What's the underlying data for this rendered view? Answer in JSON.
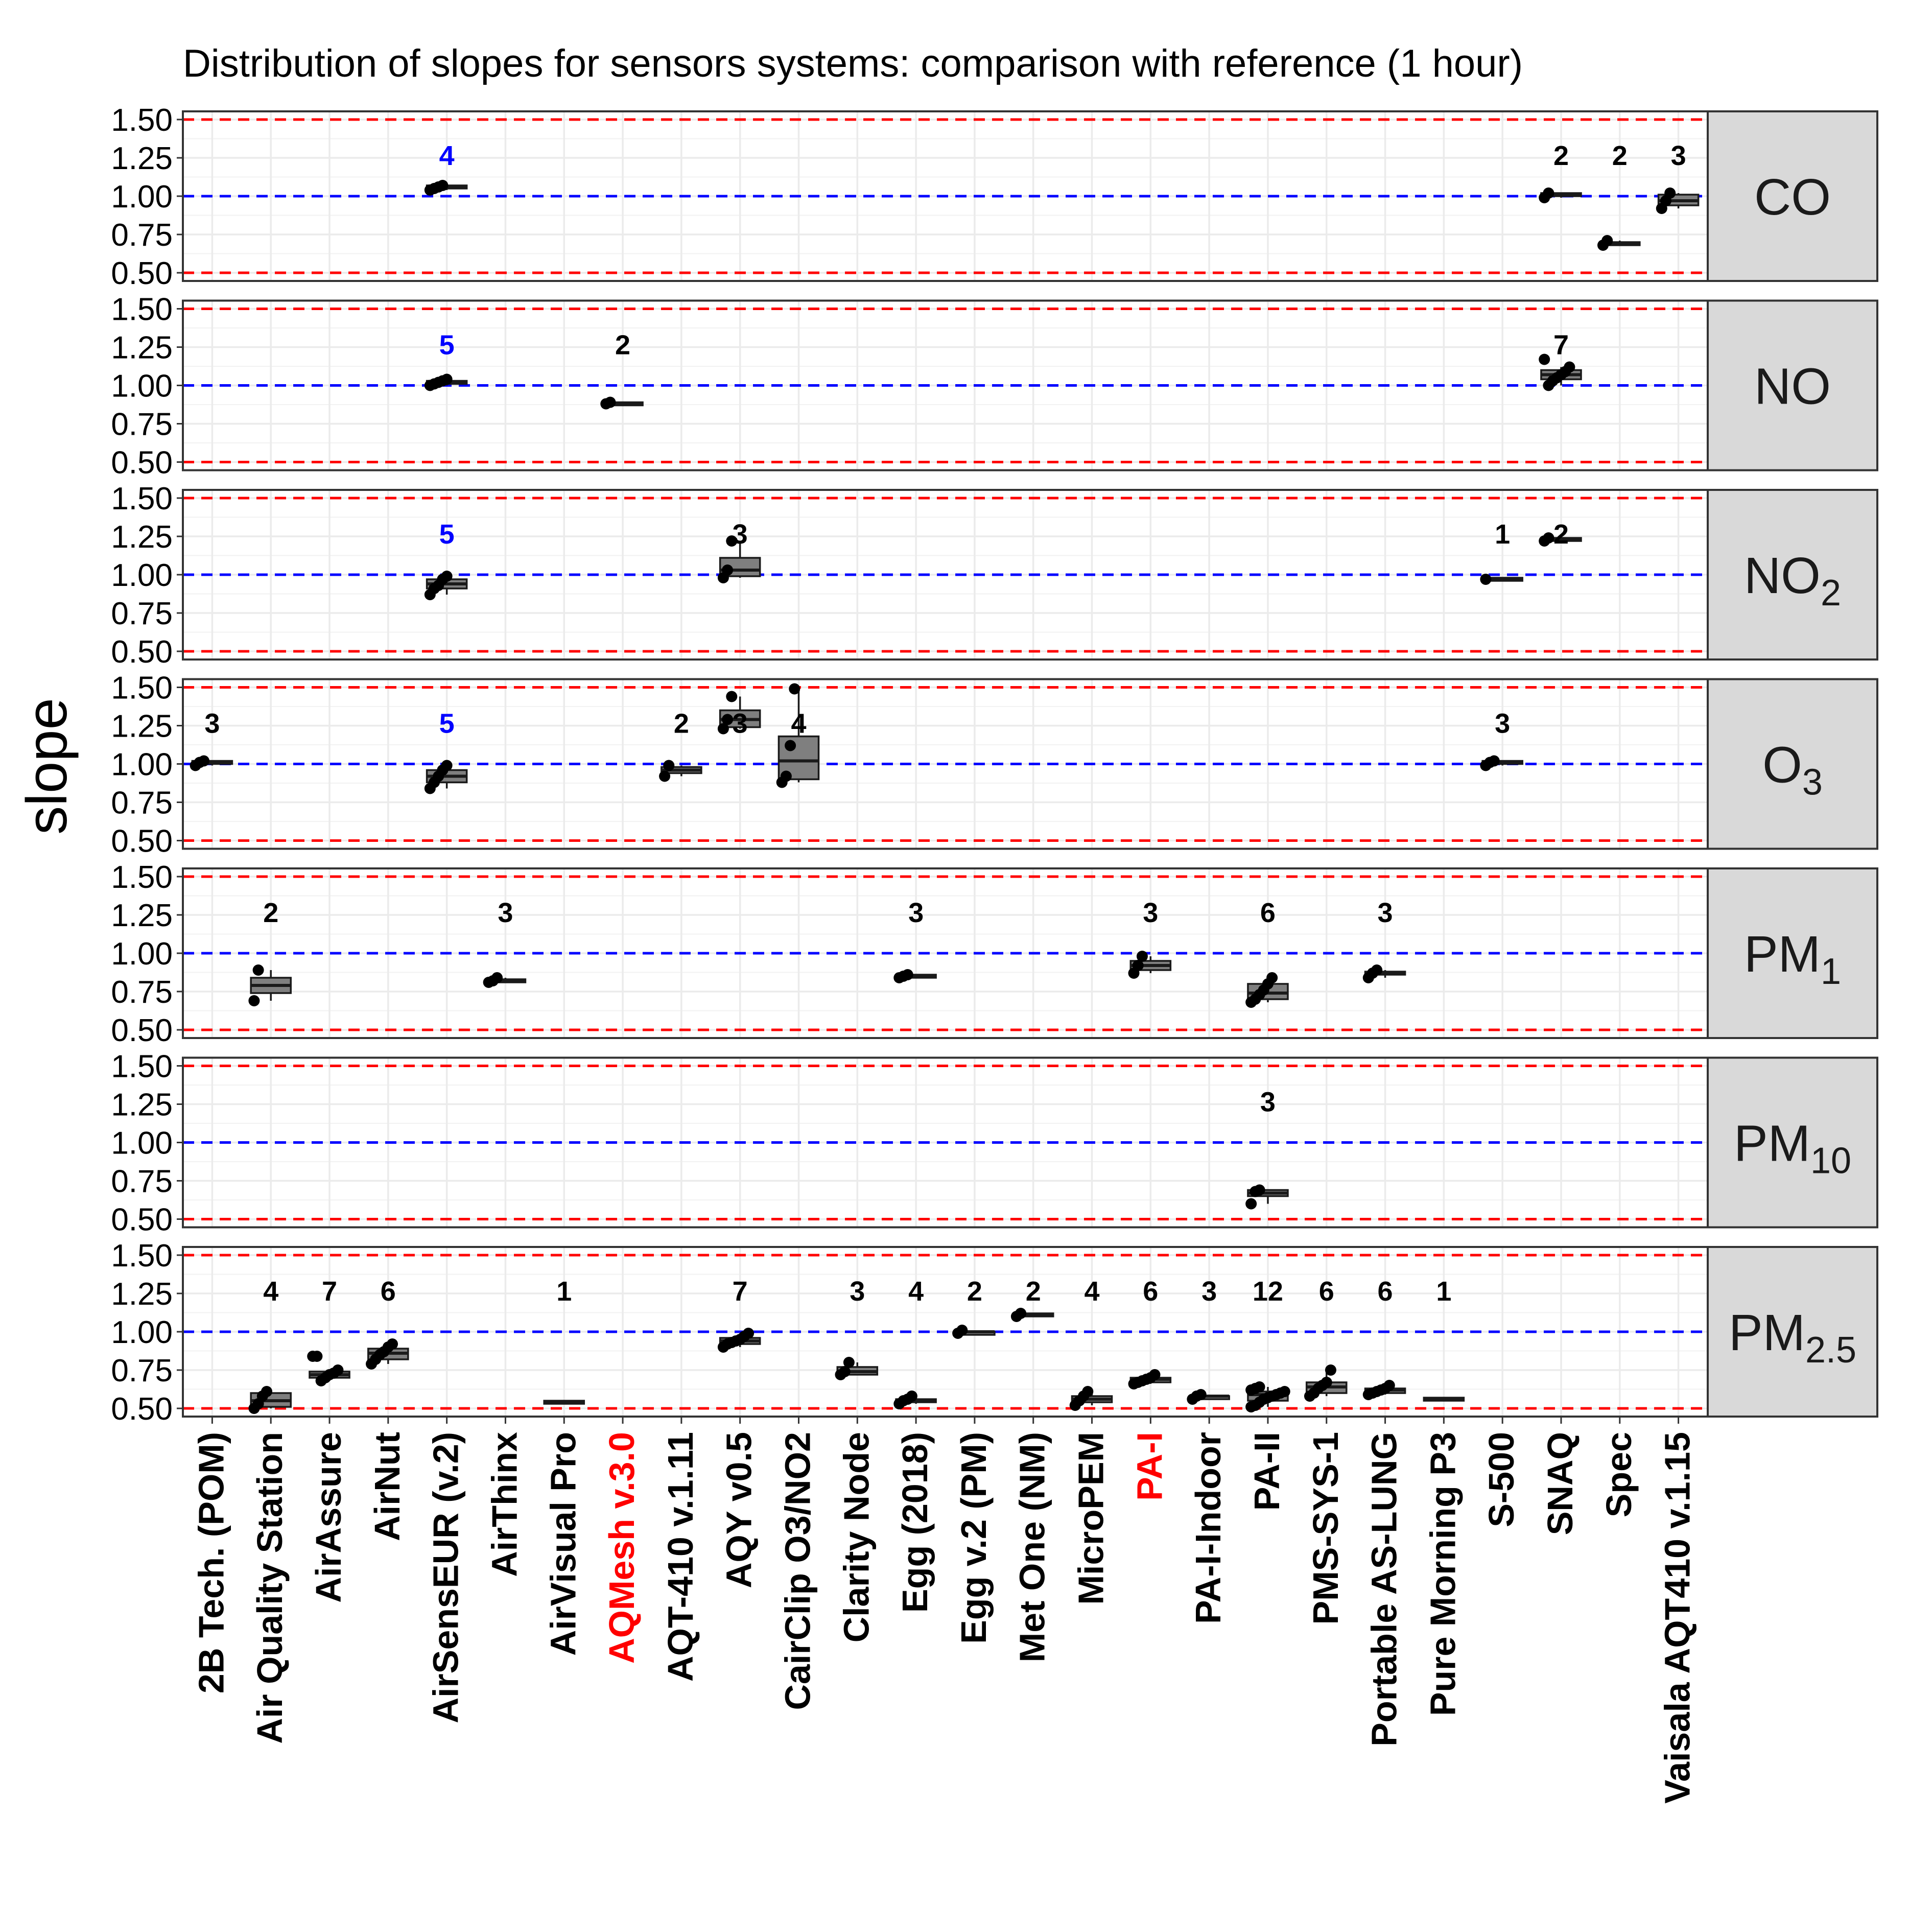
{
  "chart_data": {
    "type": "box",
    "title": "Distribution of slopes for sensors systems: comparison with reference (1 hour)",
    "ylabel": "slope",
    "ylim": [
      0.5,
      1.5
    ],
    "yticks": [
      0.5,
      0.75,
      1.0,
      1.25,
      1.5
    ],
    "ytick_labels": [
      "0.50",
      "0.75",
      "1.00",
      "1.25",
      "1.50"
    ],
    "reference_lines": [
      {
        "value": 1.0,
        "color": "#0000ff",
        "style": "dashed"
      },
      {
        "value": 0.5,
        "color": "#ff0000",
        "style": "dashed"
      },
      {
        "value": 1.5,
        "color": "#ff0000",
        "style": "dashed"
      }
    ],
    "colors": {
      "box_fill": "#7f7f7f",
      "point": "#000000",
      "count_default": "#000000",
      "count_highlight": "#0000ff",
      "label_highlight": "#ff0000",
      "strip_bg": "#d9d9d9",
      "grid": "#ebebeb"
    },
    "categories": [
      {
        "label": "2B Tech. (POM)",
        "highlight": false
      },
      {
        "label": "Air Quality Station",
        "highlight": false
      },
      {
        "label": "AirAssure",
        "highlight": false
      },
      {
        "label": "AirNut",
        "highlight": false
      },
      {
        "label": "AirSensEUR (v.2)",
        "highlight": false
      },
      {
        "label": "AirThinx",
        "highlight": false
      },
      {
        "label": "AirVisual Pro",
        "highlight": false
      },
      {
        "label": "AQMesh v.3.0",
        "highlight": true
      },
      {
        "label": "AQT-410 v.1.11",
        "highlight": false
      },
      {
        "label": "AQY v0.5",
        "highlight": false
      },
      {
        "label": "CairClip O3/NO2",
        "highlight": false
      },
      {
        "label": "Clarity Node",
        "highlight": false
      },
      {
        "label": "Egg (2018)",
        "highlight": false
      },
      {
        "label": "Egg v.2 (PM)",
        "highlight": false
      },
      {
        "label": "Met One (NM)",
        "highlight": false
      },
      {
        "label": "MicroPEM",
        "highlight": false
      },
      {
        "label": "PA-I",
        "highlight": true
      },
      {
        "label": "PA-I-Indoor",
        "highlight": false
      },
      {
        "label": "PA-II",
        "highlight": false
      },
      {
        "label": "PMS-SYS-1",
        "highlight": false
      },
      {
        "label": "Portable AS-LUNG",
        "highlight": false
      },
      {
        "label": "Pure Morning P3",
        "highlight": false
      },
      {
        "label": "S-500",
        "highlight": false
      },
      {
        "label": "SNAQ",
        "highlight": false
      },
      {
        "label": "Spec",
        "highlight": false
      },
      {
        "label": "Vaisala AQT410 v.1.15",
        "highlight": false
      }
    ],
    "panels": [
      {
        "name": "CO",
        "strip": {
          "base": "CO",
          "sub": ""
        },
        "boxes": [
          {
            "cat": 4,
            "n": "4",
            "blue": true,
            "q1": 1.05,
            "med": 1.06,
            "q3": 1.07,
            "wlo": 1.04,
            "whi": 1.07,
            "points": [
              1.04,
              1.05,
              1.06,
              1.07
            ]
          },
          {
            "cat": 23,
            "n": "2",
            "blue": false,
            "q1": 1.0,
            "med": 1.01,
            "q3": 1.02,
            "wlo": 0.99,
            "whi": 1.02,
            "points": [
              0.99,
              1.02
            ]
          },
          {
            "cat": 24,
            "n": "2",
            "blue": false,
            "q1": 0.69,
            "med": 0.69,
            "q3": 0.7,
            "wlo": 0.68,
            "whi": 0.71,
            "points": [
              0.68,
              0.71
            ]
          },
          {
            "cat": 25,
            "n": "3",
            "blue": false,
            "q1": 0.94,
            "med": 0.97,
            "q3": 1.01,
            "wlo": 0.92,
            "whi": 1.02,
            "points": [
              0.92,
              0.97,
              1.02
            ]
          }
        ]
      },
      {
        "name": "NO",
        "strip": {
          "base": "NO",
          "sub": ""
        },
        "boxes": [
          {
            "cat": 4,
            "n": "5",
            "blue": true,
            "q1": 1.01,
            "med": 1.02,
            "q3": 1.03,
            "wlo": 1.0,
            "whi": 1.04,
            "points": [
              1.0,
              1.01,
              1.02,
              1.03,
              1.04
            ]
          },
          {
            "cat": 7,
            "n": "2",
            "blue": false,
            "q1": 0.88,
            "med": 0.88,
            "q3": 0.89,
            "wlo": 0.88,
            "whi": 0.89,
            "points": [
              0.88,
              0.89
            ]
          },
          {
            "cat": 23,
            "n": "7",
            "blue": false,
            "q1": 1.04,
            "med": 1.07,
            "q3": 1.1,
            "wlo": 1.0,
            "whi": 1.12,
            "points": [
              1.17,
              1.0,
              1.03,
              1.05,
              1.07,
              1.09,
              1.12
            ]
          }
        ]
      },
      {
        "name": "NO2",
        "strip": {
          "base": "NO",
          "sub": "2"
        },
        "boxes": [
          {
            "cat": 4,
            "n": "5",
            "blue": true,
            "q1": 0.91,
            "med": 0.94,
            "q3": 0.97,
            "wlo": 0.87,
            "whi": 0.99,
            "points": [
              0.87,
              0.91,
              0.93,
              0.97,
              0.99
            ]
          },
          {
            "cat": 9,
            "n": "3",
            "blue": false,
            "q1": 0.99,
            "med": 1.03,
            "q3": 1.11,
            "wlo": 0.98,
            "whi": 1.22,
            "points": [
              0.98,
              1.03,
              1.22
            ]
          },
          {
            "cat": 22,
            "n": "1",
            "blue": false,
            "q1": 0.97,
            "med": 0.97,
            "q3": 0.98,
            "wlo": 0.97,
            "whi": 0.98,
            "points": [
              0.97
            ]
          },
          {
            "cat": 23,
            "n": "2",
            "blue": false,
            "q1": 1.22,
            "med": 1.23,
            "q3": 1.24,
            "wlo": 1.22,
            "whi": 1.24,
            "points": [
              1.22,
              1.24
            ]
          }
        ]
      },
      {
        "name": "O3",
        "strip": {
          "base": "O",
          "sub": "3"
        },
        "boxes": [
          {
            "cat": 0,
            "n": "3",
            "blue": false,
            "q1": 1.0,
            "med": 1.01,
            "q3": 1.02,
            "wlo": 0.99,
            "whi": 1.02,
            "points": [
              0.99,
              1.01,
              1.02
            ]
          },
          {
            "cat": 4,
            "n": "5",
            "blue": true,
            "q1": 0.88,
            "med": 0.92,
            "q3": 0.96,
            "wlo": 0.84,
            "whi": 0.99,
            "points": [
              0.84,
              0.88,
              0.92,
              0.96,
              0.99
            ]
          },
          {
            "cat": 8,
            "n": "2",
            "blue": false,
            "q1": 0.94,
            "med": 0.96,
            "q3": 0.98,
            "wlo": 0.92,
            "whi": 0.99,
            "points": [
              0.92,
              0.99
            ]
          },
          {
            "cat": 9,
            "n": "3",
            "blue": false,
            "q1": 1.24,
            "med": 1.29,
            "q3": 1.35,
            "wlo": 1.23,
            "whi": 1.44,
            "points": [
              1.23,
              1.29,
              1.44
            ]
          },
          {
            "cat": 10,
            "n": "4",
            "blue": false,
            "q1": 0.9,
            "med": 1.02,
            "q3": 1.18,
            "wlo": 0.88,
            "whi": 1.49,
            "points": [
              0.88,
              0.92,
              1.12,
              1.49
            ]
          },
          {
            "cat": 22,
            "n": "3",
            "blue": false,
            "q1": 1.0,
            "med": 1.01,
            "q3": 1.02,
            "wlo": 0.99,
            "whi": 1.02,
            "points": [
              0.99,
              1.01,
              1.02
            ]
          }
        ]
      },
      {
        "name": "PM1",
        "strip": {
          "base": "PM",
          "sub": "1"
        },
        "boxes": [
          {
            "cat": 1,
            "n": "2",
            "blue": false,
            "q1": 0.74,
            "med": 0.79,
            "q3": 0.84,
            "wlo": 0.69,
            "whi": 0.89,
            "points": [
              0.69,
              0.89
            ]
          },
          {
            "cat": 5,
            "n": "3",
            "blue": false,
            "q1": 0.81,
            "med": 0.82,
            "q3": 0.83,
            "wlo": 0.81,
            "whi": 0.84,
            "points": [
              0.81,
              0.82,
              0.84
            ]
          },
          {
            "cat": 12,
            "n": "3",
            "blue": false,
            "q1": 0.84,
            "med": 0.85,
            "q3": 0.86,
            "wlo": 0.84,
            "whi": 0.86,
            "points": [
              0.84,
              0.85,
              0.86
            ]
          },
          {
            "cat": 16,
            "n": "3",
            "blue": false,
            "q1": 0.89,
            "med": 0.92,
            "q3": 0.95,
            "wlo": 0.87,
            "whi": 0.98,
            "points": [
              0.87,
              0.92,
              0.98
            ]
          },
          {
            "cat": 18,
            "n": "6",
            "blue": false,
            "q1": 0.7,
            "med": 0.74,
            "q3": 0.8,
            "wlo": 0.68,
            "whi": 0.84,
            "points": [
              0.68,
              0.7,
              0.73,
              0.76,
              0.8,
              0.84
            ]
          },
          {
            "cat": 20,
            "n": "3",
            "blue": false,
            "q1": 0.86,
            "med": 0.87,
            "q3": 0.88,
            "wlo": 0.84,
            "whi": 0.89,
            "points": [
              0.84,
              0.87,
              0.89
            ]
          }
        ]
      },
      {
        "name": "PM10",
        "strip": {
          "base": "PM",
          "sub": "10"
        },
        "boxes": [
          {
            "cat": 18,
            "n": "3",
            "blue": false,
            "q1": 0.65,
            "med": 0.67,
            "q3": 0.69,
            "wlo": 0.6,
            "whi": 0.69,
            "points": [
              0.6,
              0.68,
              0.69
            ]
          }
        ]
      },
      {
        "name": "PM2.5",
        "strip": {
          "base": "PM",
          "sub": "2.5"
        },
        "boxes": [
          {
            "cat": 1,
            "n": "4",
            "blue": false,
            "q1": 0.51,
            "med": 0.55,
            "q3": 0.6,
            "wlo": 0.5,
            "whi": 0.61,
            "points": [
              0.5,
              0.53,
              0.58,
              0.61
            ]
          },
          {
            "cat": 2,
            "n": "7",
            "blue": false,
            "q1": 0.7,
            "med": 0.72,
            "q3": 0.74,
            "wlo": 0.68,
            "whi": 0.75,
            "points": [
              0.84,
              0.84,
              0.68,
              0.7,
              0.72,
              0.73,
              0.75
            ]
          },
          {
            "cat": 3,
            "n": "6",
            "blue": false,
            "q1": 0.82,
            "med": 0.86,
            "q3": 0.89,
            "wlo": 0.79,
            "whi": 0.92,
            "points": [
              0.79,
              0.82,
              0.85,
              0.87,
              0.9,
              0.92
            ]
          },
          {
            "cat": 6,
            "n": "1",
            "blue": false,
            "q1": 0.54,
            "med": 0.545,
            "q3": 0.55,
            "wlo": 0.54,
            "whi": 0.55,
            "points": []
          },
          {
            "cat": 9,
            "n": "7",
            "blue": false,
            "q1": 0.92,
            "med": 0.94,
            "q3": 0.96,
            "wlo": 0.9,
            "whi": 0.99,
            "points": [
              0.9,
              0.92,
              0.93,
              0.94,
              0.95,
              0.97,
              0.99
            ]
          },
          {
            "cat": 11,
            "n": "3",
            "blue": false,
            "q1": 0.72,
            "med": 0.74,
            "q3": 0.77,
            "wlo": 0.72,
            "whi": 0.8,
            "points": [
              0.72,
              0.74,
              0.8
            ]
          },
          {
            "cat": 12,
            "n": "4",
            "blue": false,
            "q1": 0.54,
            "med": 0.55,
            "q3": 0.56,
            "wlo": 0.53,
            "whi": 0.58,
            "points": [
              0.53,
              0.55,
              0.56,
              0.58
            ]
          },
          {
            "cat": 13,
            "n": "2",
            "blue": false,
            "q1": 0.99,
            "med": 1.0,
            "q3": 1.0,
            "wlo": 0.99,
            "whi": 1.01,
            "points": [
              0.99,
              1.01
            ]
          },
          {
            "cat": 14,
            "n": "2",
            "blue": false,
            "q1": 1.11,
            "med": 1.11,
            "q3": 1.12,
            "wlo": 1.1,
            "whi": 1.12,
            "points": [
              1.1,
              1.12
            ]
          },
          {
            "cat": 15,
            "n": "4",
            "blue": false,
            "q1": 0.54,
            "med": 0.56,
            "q3": 0.58,
            "wlo": 0.52,
            "whi": 0.61,
            "points": [
              0.52,
              0.55,
              0.58,
              0.61
            ]
          },
          {
            "cat": 16,
            "n": "6",
            "blue": false,
            "q1": 0.67,
            "med": 0.69,
            "q3": 0.7,
            "wlo": 0.66,
            "whi": 0.72,
            "points": [
              0.66,
              0.67,
              0.68,
              0.69,
              0.7,
              0.72
            ]
          },
          {
            "cat": 17,
            "n": "3",
            "blue": false,
            "q1": 0.57,
            "med": 0.58,
            "q3": 0.58,
            "wlo": 0.56,
            "whi": 0.59,
            "points": [
              0.56,
              0.58,
              0.59
            ]
          },
          {
            "cat": 18,
            "n": "12",
            "blue": false,
            "q1": 0.55,
            "med": 0.59,
            "q3": 0.61,
            "wlo": 0.51,
            "whi": 0.64,
            "points": [
              0.51,
              0.52,
              0.54,
              0.56,
              0.57,
              0.58,
              0.59,
              0.6,
              0.61,
              0.62,
              0.63,
              0.64
            ]
          },
          {
            "cat": 19,
            "n": "6",
            "blue": false,
            "q1": 0.6,
            "med": 0.64,
            "q3": 0.67,
            "wlo": 0.58,
            "whi": 0.75,
            "points": [
              0.58,
              0.6,
              0.63,
              0.65,
              0.67,
              0.75
            ]
          },
          {
            "cat": 20,
            "n": "6",
            "blue": false,
            "q1": 0.6,
            "med": 0.62,
            "q3": 0.63,
            "wlo": 0.59,
            "whi": 0.65,
            "points": [
              0.59,
              0.6,
              0.61,
              0.62,
              0.63,
              0.65
            ]
          },
          {
            "cat": 21,
            "n": "1",
            "blue": false,
            "q1": 0.56,
            "med": 0.565,
            "q3": 0.57,
            "wlo": 0.56,
            "whi": 0.57,
            "points": []
          }
        ]
      }
    ]
  }
}
